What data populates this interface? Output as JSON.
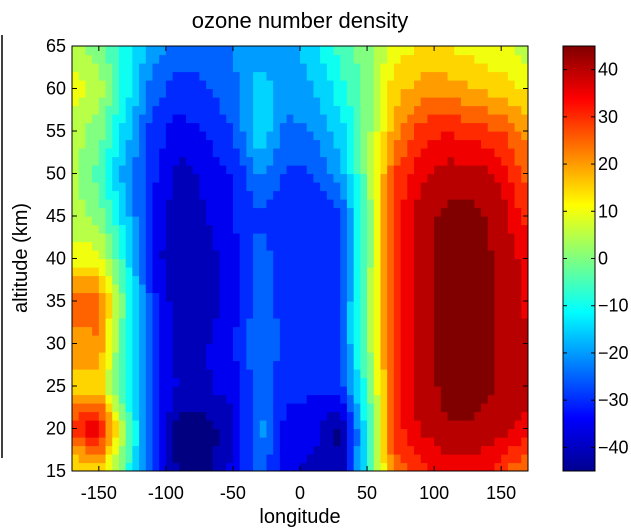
{
  "chart_data": {
    "type": "heatmap",
    "title": "ozone number density",
    "xlabel": "longitude",
    "ylabel": "altitude (km)",
    "xlim": [
      -170,
      170
    ],
    "ylim": [
      15,
      65
    ],
    "x_ticks": [
      -150,
      -100,
      -50,
      0,
      50,
      100,
      150
    ],
    "y_ticks": [
      15,
      20,
      25,
      30,
      35,
      40,
      45,
      50,
      55,
      60,
      65
    ],
    "colorbar": {
      "range": [
        -45,
        45
      ],
      "ticks": [
        40,
        30,
        20,
        10,
        0,
        -10,
        -20,
        -30,
        -40
      ],
      "tick_labels": [
        "40",
        "30",
        "20",
        "10",
        "0",
        "−10",
        "−20",
        "−30",
        "−40"
      ],
      "colormap": "jet"
    },
    "longitudes": [
      -170,
      -150,
      -130,
      -110,
      -90,
      -70,
      -50,
      -30,
      -10,
      10,
      30,
      50,
      70,
      90,
      110,
      130,
      150,
      170
    ],
    "altitudes": [
      15,
      20,
      25,
      30,
      35,
      40,
      45,
      50,
      55,
      60,
      65
    ],
    "values": [
      [
        10,
        15,
        -5,
        -30,
        -44,
        -45,
        -35,
        -25,
        -35,
        -40,
        -42,
        -10,
        25,
        30,
        35,
        35,
        30,
        20
      ],
      [
        30,
        38,
        0,
        -30,
        -45,
        -45,
        -40,
        -20,
        -35,
        -35,
        -44,
        -10,
        30,
        38,
        42,
        42,
        40,
        35
      ],
      [
        15,
        15,
        -10,
        -30,
        -38,
        -38,
        -35,
        -25,
        -30,
        -32,
        -30,
        -5,
        30,
        40,
        44,
        44,
        42,
        40
      ],
      [
        20,
        22,
        -8,
        -30,
        -40,
        -38,
        -33,
        -22,
        -30,
        -32,
        -28,
        0,
        30,
        40,
        44,
        44,
        42,
        38
      ],
      [
        25,
        25,
        -5,
        -30,
        -42,
        -40,
        -35,
        -24,
        -30,
        -30,
        -28,
        0,
        30,
        40,
        44,
        44,
        42,
        36
      ],
      [
        10,
        10,
        -10,
        -35,
        -42,
        -40,
        -35,
        -25,
        -30,
        -32,
        -28,
        -2,
        30,
        40,
        44,
        44,
        42,
        35
      ],
      [
        5,
        0,
        -15,
        -35,
        -40,
        -38,
        -32,
        -28,
        -32,
        -32,
        -28,
        -2,
        30,
        40,
        44,
        44,
        40,
        30
      ],
      [
        5,
        -5,
        -20,
        -30,
        -40,
        -36,
        -32,
        -22,
        -28,
        -28,
        -20,
        0,
        28,
        36,
        40,
        40,
        36,
        25
      ],
      [
        5,
        0,
        -15,
        -30,
        -35,
        -32,
        -28,
        -12,
        -25,
        -22,
        -15,
        0,
        20,
        30,
        32,
        30,
        28,
        20
      ],
      [
        10,
        5,
        -10,
        -25,
        -30,
        -28,
        -24,
        -15,
        -20,
        -18,
        -10,
        0,
        15,
        20,
        20,
        18,
        15,
        12
      ],
      [
        5,
        0,
        -10,
        -20,
        -25,
        -25,
        -22,
        -20,
        -20,
        -15,
        -5,
        0,
        10,
        12,
        12,
        10,
        8,
        5
      ]
    ]
  }
}
